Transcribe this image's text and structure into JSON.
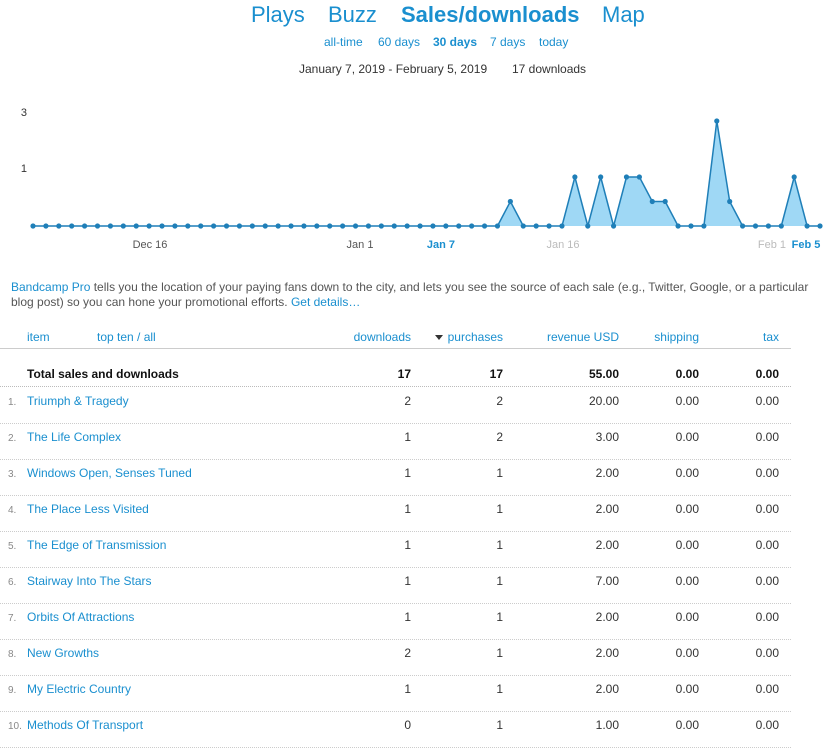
{
  "main_tabs": [
    {
      "label": "Plays",
      "active": false
    },
    {
      "label": "Buzz",
      "active": false
    },
    {
      "label": "Sales/downloads",
      "active": true
    },
    {
      "label": "Map",
      "active": false
    }
  ],
  "range_tabs": [
    {
      "label": "all-time",
      "active": false
    },
    {
      "label": "60 days",
      "active": false
    },
    {
      "label": "30 days",
      "active": true
    },
    {
      "label": "7 days",
      "active": false
    },
    {
      "label": "today",
      "active": false
    }
  ],
  "summary": {
    "date_range": "January 7, 2019 - February 5, 2019",
    "count": "17 downloads"
  },
  "chart_data": {
    "type": "area",
    "y_ticks": [
      "3",
      "1"
    ],
    "x_tick_labels": [
      "Dec 16",
      "Jan 1",
      "Jan 7",
      "Jan 16",
      "Feb 1",
      "Feb 5"
    ],
    "x_start": "Dec 7",
    "x_end": "Feb 5",
    "values": [
      0,
      0,
      0,
      0,
      0,
      0,
      0,
      0,
      0,
      0,
      0,
      0,
      0,
      0,
      0,
      0,
      0,
      0,
      0,
      0,
      0,
      0,
      0,
      0,
      0,
      0,
      0,
      0,
      0,
      0,
      0,
      0,
      0,
      0,
      0,
      0,
      0,
      0.7,
      0,
      0,
      0,
      0,
      1.4,
      0,
      1.4,
      0,
      1.4,
      1.4,
      0.7,
      0.7,
      0,
      0,
      0,
      3,
      0.7,
      0,
      0,
      0,
      0,
      1.4,
      0,
      0
    ],
    "highlight_range": [
      "Jan 7",
      "Feb 5"
    ],
    "colors": {
      "fill": "#9fd8f5",
      "line": "#1f7fb8",
      "point": "#1f7fb8"
    }
  },
  "pro_note": {
    "link1": "Bandcamp Pro",
    "text": " tells you the location of your paying fans down to the city, and lets you see the source of each sale (e.g., Twitter, Google, or a particular blog post) so you can hone your promotional efforts. ",
    "link2": "Get details…"
  },
  "table": {
    "headers": {
      "item": "item",
      "topten": "top ten / all",
      "downloads": "downloads",
      "purchases": "purchases",
      "revenue": "revenue USD",
      "shipping": "shipping",
      "tax": "tax"
    },
    "total": {
      "label": "Total sales and downloads",
      "downloads": "17",
      "purchases": "17",
      "revenue": "55.00",
      "shipping": "0.00",
      "tax": "0.00"
    },
    "rows": [
      {
        "num": "1.",
        "title": "Triumph & Tragedy",
        "downloads": "2",
        "purchases": "2",
        "revenue": "20.00",
        "shipping": "0.00",
        "tax": "0.00"
      },
      {
        "num": "2.",
        "title": "The Life Complex",
        "downloads": "1",
        "purchases": "2",
        "revenue": "3.00",
        "shipping": "0.00",
        "tax": "0.00"
      },
      {
        "num": "3.",
        "title": "Windows Open, Senses Tuned",
        "downloads": "1",
        "purchases": "1",
        "revenue": "2.00",
        "shipping": "0.00",
        "tax": "0.00"
      },
      {
        "num": "4.",
        "title": "The Place Less Visited",
        "downloads": "1",
        "purchases": "1",
        "revenue": "2.00",
        "shipping": "0.00",
        "tax": "0.00"
      },
      {
        "num": "5.",
        "title": "The Edge of Transmission",
        "downloads": "1",
        "purchases": "1",
        "revenue": "2.00",
        "shipping": "0.00",
        "tax": "0.00"
      },
      {
        "num": "6.",
        "title": "Stairway Into The Stars",
        "downloads": "1",
        "purchases": "1",
        "revenue": "7.00",
        "shipping": "0.00",
        "tax": "0.00"
      },
      {
        "num": "7.",
        "title": "Orbits Of Attractions",
        "downloads": "1",
        "purchases": "1",
        "revenue": "2.00",
        "shipping": "0.00",
        "tax": "0.00"
      },
      {
        "num": "8.",
        "title": "New Growths",
        "downloads": "2",
        "purchases": "1",
        "revenue": "2.00",
        "shipping": "0.00",
        "tax": "0.00"
      },
      {
        "num": "9.",
        "title": "My Electric Country",
        "downloads": "1",
        "purchases": "1",
        "revenue": "2.00",
        "shipping": "0.00",
        "tax": "0.00"
      },
      {
        "num": "10.",
        "title": "Methods Of Transport",
        "downloads": "0",
        "purchases": "1",
        "revenue": "1.00",
        "shipping": "0.00",
        "tax": "0.00"
      }
    ]
  }
}
